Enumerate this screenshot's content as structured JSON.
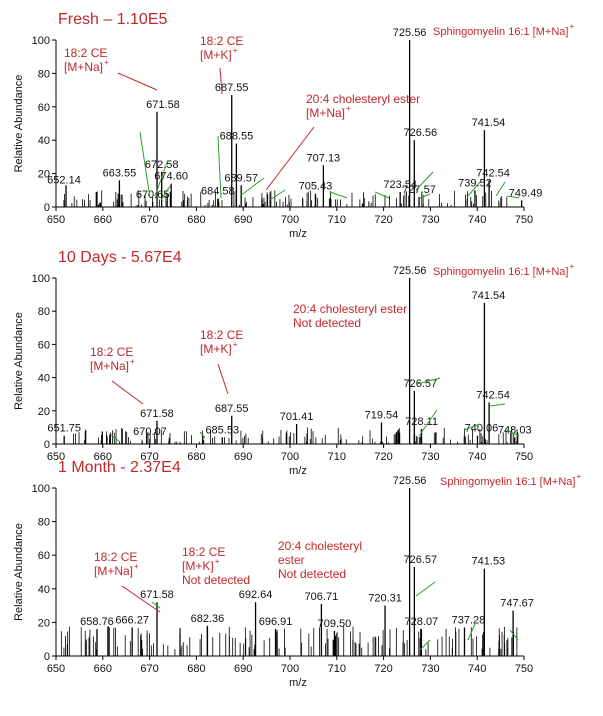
{
  "chart_data": [
    {
      "type": "bar",
      "title": "Fresh – 1.10E5",
      "xlabel": "m/z",
      "ylabel": "Relative Abundance",
      "xlim": [
        650,
        750
      ],
      "ylim": [
        0,
        100
      ],
      "xticks": [
        650,
        660,
        670,
        680,
        690,
        700,
        710,
        720,
        730,
        740,
        750
      ],
      "yticks": [
        0,
        20,
        40,
        60,
        80,
        100
      ],
      "peaks": [
        {
          "mz": 652.14,
          "y": 13,
          "label": "652.14"
        },
        {
          "mz": 663.55,
          "y": 16,
          "label": "663.55"
        },
        {
          "mz": 670.65,
          "y": 3,
          "label": "670.65"
        },
        {
          "mz": 671.58,
          "y": 57,
          "label": "671.58"
        },
        {
          "mz": 672.58,
          "y": 21,
          "label": "672.58"
        },
        {
          "mz": 674.6,
          "y": 14,
          "label": "674.60"
        },
        {
          "mz": 684.58,
          "y": 5,
          "label": "684.58"
        },
        {
          "mz": 687.55,
          "y": 67,
          "label": "687.55"
        },
        {
          "mz": 688.55,
          "y": 38,
          "label": "688.55"
        },
        {
          "mz": 689.57,
          "y": 13,
          "label": "689.57"
        },
        {
          "mz": 705.43,
          "y": 8,
          "label": "705.43"
        },
        {
          "mz": 707.13,
          "y": 25,
          "label": "707.13"
        },
        {
          "mz": 723.54,
          "y": 9,
          "label": "723.54"
        },
        {
          "mz": 725.56,
          "y": 100,
          "label": "725.56"
        },
        {
          "mz": 726.56,
          "y": 40,
          "label": "726.56"
        },
        {
          "mz": 727.57,
          "y": 6,
          "label": "727.57"
        },
        {
          "mz": 739.52,
          "y": 10,
          "label": "739.52"
        },
        {
          "mz": 741.54,
          "y": 46,
          "label": "741.54"
        },
        {
          "mz": 742.54,
          "y": 16,
          "label": "742.54"
        },
        {
          "mz": 749.49,
          "y": 4,
          "label": "749.49"
        }
      ],
      "annotations": [
        {
          "lines": [
            "18:2 CE",
            "[M+Na]"
          ],
          "sup": "+"
        },
        {
          "lines": [
            "18:2 CE",
            "[M+K]"
          ],
          "sup": "+"
        },
        {
          "lines": [
            "20:4 cholesteryl ester",
            "[M+Na]"
          ],
          "sup": "+"
        },
        {
          "lines": [
            "Sphingomyelin 16:1 [M+Na]"
          ],
          "sup": "+"
        }
      ]
    },
    {
      "type": "bar",
      "title": "10 Days - 5.67E4",
      "xlabel": "m/z",
      "ylabel": "Relative Abundance",
      "xlim": [
        650,
        750
      ],
      "ylim": [
        0,
        100
      ],
      "xticks": [
        650,
        660,
        670,
        680,
        690,
        700,
        710,
        720,
        730,
        740,
        750
      ],
      "yticks": [
        0,
        20,
        40,
        60,
        80,
        100
      ],
      "peaks": [
        {
          "mz": 651.75,
          "y": 5,
          "label": "651.75"
        },
        {
          "mz": 670.07,
          "y": 3,
          "label": "670.07"
        },
        {
          "mz": 671.58,
          "y": 14,
          "label": "671.58"
        },
        {
          "mz": 685.53,
          "y": 4,
          "label": "685.53"
        },
        {
          "mz": 687.55,
          "y": 17,
          "label": "687.55"
        },
        {
          "mz": 701.41,
          "y": 12,
          "label": "701.41"
        },
        {
          "mz": 719.54,
          "y": 13,
          "label": "719.54"
        },
        {
          "mz": 725.56,
          "y": 100,
          "label": "725.56"
        },
        {
          "mz": 726.57,
          "y": 32,
          "label": "726.57"
        },
        {
          "mz": 728.11,
          "y": 9,
          "label": "728.11"
        },
        {
          "mz": 740.06,
          "y": 5,
          "label": "740.06"
        },
        {
          "mz": 741.54,
          "y": 85,
          "label": "741.54"
        },
        {
          "mz": 742.54,
          "y": 25,
          "label": "742.54"
        },
        {
          "mz": 748.03,
          "y": 4,
          "label": "748.03"
        }
      ],
      "annotations": [
        {
          "lines": [
            "18:2 CE",
            "[M+Na]"
          ],
          "sup": "+"
        },
        {
          "lines": [
            "18:2 CE",
            "[M+K]"
          ],
          "sup": "+"
        },
        {
          "lines": [
            "20:4 cholesteryl ester",
            "Not detected"
          ],
          "sup": ""
        },
        {
          "lines": [
            "Sphingomyelin 16:1 [M+Na]"
          ],
          "sup": "+"
        }
      ]
    },
    {
      "type": "bar",
      "title": "1 Month - 2.37E4",
      "xlabel": "m/z",
      "ylabel": "Relative Abundance",
      "xlim": [
        650,
        750
      ],
      "ylim": [
        0,
        100
      ],
      "xticks": [
        650,
        660,
        670,
        680,
        690,
        700,
        710,
        720,
        730,
        740,
        750
      ],
      "yticks": [
        0,
        20,
        40,
        60,
        80,
        100
      ],
      "peaks": [
        {
          "mz": 658.76,
          "y": 16,
          "label": "658.76"
        },
        {
          "mz": 666.27,
          "y": 17,
          "label": "666.27"
        },
        {
          "mz": 671.58,
          "y": 32,
          "label": "671.58"
        },
        {
          "mz": 682.36,
          "y": 18,
          "label": "682.36"
        },
        {
          "mz": 692.64,
          "y": 32,
          "label": "692.64"
        },
        {
          "mz": 696.91,
          "y": 16,
          "label": "696.91"
        },
        {
          "mz": 706.71,
          "y": 31,
          "label": "706.71"
        },
        {
          "mz": 709.5,
          "y": 15,
          "label": "709.50"
        },
        {
          "mz": 720.31,
          "y": 30,
          "label": "720.31"
        },
        {
          "mz": 725.56,
          "y": 100,
          "label": "725.56"
        },
        {
          "mz": 726.57,
          "y": 53,
          "label": "726.57"
        },
        {
          "mz": 728.07,
          "y": 16,
          "label": "728.07"
        },
        {
          "mz": 737.28,
          "y": 17,
          "label": "737.28"
        },
        {
          "mz": 741.53,
          "y": 52,
          "label": "741.53"
        },
        {
          "mz": 747.67,
          "y": 27,
          "label": "747.67"
        }
      ],
      "annotations": [
        {
          "lines": [
            "18:2 CE",
            "[M+Na]"
          ],
          "sup": "+"
        },
        {
          "lines": [
            "18:2 CE",
            "[M+K]",
            "Not detected"
          ],
          "sup": "+"
        },
        {
          "lines": [
            "20:4 cholesteryl",
            "ester",
            "Not detected"
          ],
          "sup": ""
        },
        {
          "lines": [
            "Sphingomyelin 16:1 [M+Na]"
          ],
          "sup": "+"
        }
      ]
    }
  ]
}
